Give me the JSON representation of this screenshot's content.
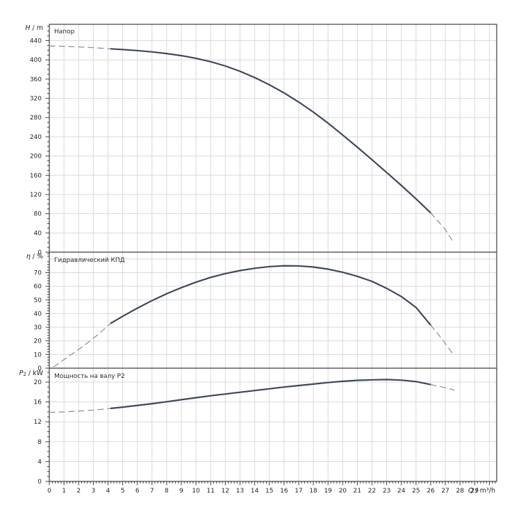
{
  "colors": {
    "curve_solid": "#3d4759",
    "curve_dashed": "#8b93a3",
    "grid": "#d9d9d9",
    "border": "#3c3c3c",
    "text": "#1f1f1f"
  },
  "x_axis": {
    "label_var": "Q",
    "label_unit": " / m³/h",
    "min": 0,
    "max": 30.5,
    "major_step": 1,
    "minor_step": 0.2,
    "tick_labels": [
      "0",
      "1",
      "2",
      "3",
      "4",
      "5",
      "6",
      "7",
      "8",
      "9",
      "10",
      "11",
      "12",
      "13",
      "14",
      "15",
      "16",
      "17",
      "18",
      "19",
      "20",
      "21",
      "22",
      "23",
      "24",
      "25",
      "26",
      "27",
      "28",
      "29"
    ]
  },
  "chart_data": [
    {
      "type": "line",
      "id": "head",
      "title": "Напор",
      "ylabel_var": "H",
      "ylabel_sub": "",
      "ylabel_unit": " / m",
      "ylim": [
        0,
        474
      ],
      "grid_step": 40,
      "minor_step": 10,
      "ytick_labels": [
        "0",
        "40",
        "80",
        "120",
        "160",
        "200",
        "240",
        "280",
        "320",
        "360",
        "400",
        "440"
      ],
      "series": [
        {
          "name": "H-dashed-left",
          "style": "dashed",
          "points": [
            [
              0,
              429
            ],
            [
              1,
              428.2
            ],
            [
              2,
              427
            ],
            [
              3,
              425.5
            ],
            [
              4.2,
              423
            ]
          ]
        },
        {
          "name": "H-solid",
          "style": "solid",
          "points": [
            [
              4.2,
              423
            ],
            [
              5,
              421.6
            ],
            [
              6,
              419.4
            ],
            [
              7,
              416.6
            ],
            [
              8,
              413.1
            ],
            [
              9,
              408.8
            ],
            [
              10,
              403.3
            ],
            [
              11,
              396.3
            ],
            [
              12,
              387.3
            ],
            [
              13,
              376.3
            ],
            [
              14,
              363.3
            ],
            [
              15,
              348.3
            ],
            [
              16,
              331.3
            ],
            [
              17,
              312.3
            ],
            [
              18,
              291.3
            ],
            [
              19,
              268.3
            ],
            [
              20,
              243.8
            ],
            [
              21,
              218.3
            ],
            [
              22,
              192.3
            ],
            [
              23,
              165.8
            ],
            [
              24,
              138.8
            ],
            [
              25,
              110.8
            ],
            [
              26,
              81.8
            ]
          ]
        },
        {
          "name": "H-dashed-right",
          "style": "dashed",
          "points": [
            [
              26,
              81.8
            ],
            [
              27,
              47
            ],
            [
              27.6,
              18
            ]
          ]
        }
      ]
    },
    {
      "type": "line",
      "id": "efficiency",
      "title": "Гидравлический КПД",
      "ylabel_var": "η",
      "ylabel_sub": "",
      "ylabel_unit": " / %",
      "ylim": [
        0,
        85
      ],
      "grid_step": 10,
      "minor_step": 2,
      "ytick_labels": [
        "0",
        "10",
        "20",
        "30",
        "40",
        "50",
        "60",
        "70"
      ],
      "series": [
        {
          "name": "eta-dashed-left",
          "style": "dashed",
          "points": [
            [
              0.3,
              1
            ],
            [
              1.3,
              8.5
            ],
            [
              2.3,
              16
            ],
            [
              3.3,
              24.5
            ],
            [
              4.2,
              33
            ]
          ]
        },
        {
          "name": "eta-solid",
          "style": "solid",
          "points": [
            [
              4.2,
              33
            ],
            [
              5,
              38
            ],
            [
              6,
              44
            ],
            [
              7,
              49.5
            ],
            [
              8,
              54.5
            ],
            [
              9,
              59
            ],
            [
              10,
              63
            ],
            [
              11,
              66.5
            ],
            [
              12,
              69.3
            ],
            [
              13,
              71.5
            ],
            [
              14,
              73.2
            ],
            [
              15,
              74.4
            ],
            [
              16,
              75
            ],
            [
              17,
              74.9
            ],
            [
              18,
              74.1
            ],
            [
              19,
              72.6
            ],
            [
              20,
              70.3
            ],
            [
              21,
              67.3
            ],
            [
              22,
              63.6
            ],
            [
              23,
              58.5
            ],
            [
              24,
              52.5
            ],
            [
              25,
              44.5
            ],
            [
              26,
              31.5
            ]
          ]
        },
        {
          "name": "eta-dashed-right",
          "style": "dashed",
          "points": [
            [
              26,
              31.5
            ],
            [
              26.8,
              21
            ],
            [
              27.6,
              9
            ]
          ]
        }
      ]
    },
    {
      "type": "line",
      "id": "power",
      "title": "Мощность на валу P2",
      "ylabel_var": "P",
      "ylabel_sub": "2",
      "ylabel_unit": " / kW",
      "ylim": [
        0,
        22.8
      ],
      "grid_step": 4,
      "minor_step": 1,
      "ytick_labels": [
        "0",
        "4",
        "8",
        "12",
        "16",
        "20"
      ],
      "series": [
        {
          "name": "P2-dashed-left",
          "style": "dashed",
          "points": [
            [
              0,
              13.9
            ],
            [
              1,
              14.0
            ],
            [
              2,
              14.15
            ],
            [
              3,
              14.35
            ],
            [
              4.2,
              14.7
            ]
          ]
        },
        {
          "name": "P2-solid",
          "style": "solid",
          "points": [
            [
              4.2,
              14.7
            ],
            [
              5,
              14.95
            ],
            [
              6,
              15.3
            ],
            [
              7,
              15.65
            ],
            [
              8,
              16.05
            ],
            [
              9,
              16.45
            ],
            [
              10,
              16.85
            ],
            [
              11,
              17.25
            ],
            [
              12,
              17.6
            ],
            [
              13,
              17.95
            ],
            [
              14,
              18.3
            ],
            [
              15,
              18.65
            ],
            [
              16,
              19.0
            ],
            [
              17,
              19.3
            ],
            [
              18,
              19.6
            ],
            [
              19,
              19.9
            ],
            [
              20,
              20.15
            ],
            [
              21,
              20.35
            ],
            [
              22,
              20.45
            ],
            [
              23,
              20.5
            ],
            [
              24,
              20.4
            ],
            [
              25,
              20.1
            ],
            [
              26,
              19.5
            ]
          ]
        },
        {
          "name": "P2-dashed-right",
          "style": "dashed",
          "points": [
            [
              26,
              19.5
            ],
            [
              26.8,
              19.0
            ],
            [
              27.6,
              18.4
            ]
          ]
        }
      ]
    }
  ]
}
